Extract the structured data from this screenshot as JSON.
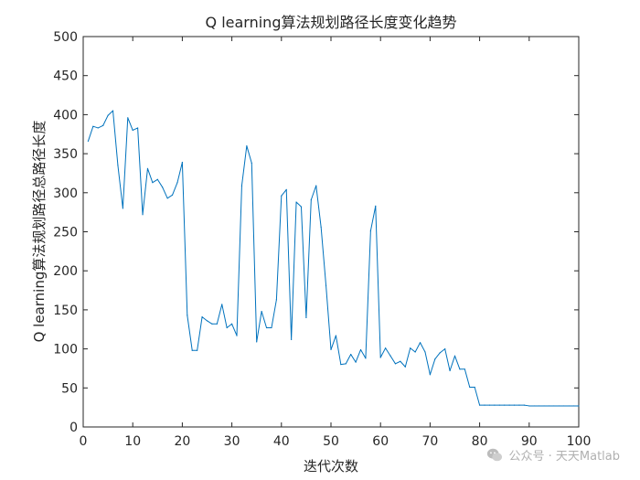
{
  "chart_data": {
    "type": "line",
    "title": "Q learning算法规划路径长度变化趋势",
    "xlabel": "迭代次数",
    "ylabel": "Q learning算法规划路径总路径长度",
    "xlim": [
      0,
      100
    ],
    "ylim": [
      0,
      500
    ],
    "xticks": [
      0,
      10,
      20,
      30,
      40,
      50,
      60,
      70,
      80,
      90,
      100
    ],
    "yticks": [
      0,
      50,
      100,
      150,
      200,
      250,
      300,
      350,
      400,
      450,
      500
    ],
    "grid": false,
    "line_color": "#0072BD",
    "series": [
      {
        "x": [
          1,
          2,
          3,
          4,
          5,
          6,
          7,
          8,
          9,
          10,
          11,
          12,
          13,
          14,
          15,
          16,
          17,
          18,
          19,
          20,
          21,
          22,
          23,
          24,
          25,
          26,
          27,
          28,
          29,
          30,
          31,
          32,
          33,
          34,
          35,
          36,
          37,
          38,
          39,
          40,
          41,
          42,
          43,
          44,
          45,
          46,
          47,
          48,
          49,
          50,
          51,
          52,
          53,
          54,
          55,
          56,
          57,
          58,
          59,
          60,
          61,
          62,
          63,
          64,
          65,
          66,
          67,
          68,
          69,
          70,
          71,
          72,
          73,
          74,
          75,
          76,
          77,
          78,
          79,
          80,
          81,
          82,
          83,
          84,
          85,
          86,
          87,
          88,
          89,
          90,
          91,
          92,
          93,
          94,
          95,
          96,
          97,
          98,
          99,
          100
        ],
        "values": [
          366,
          385,
          383,
          386,
          399,
          405,
          335,
          280,
          396,
          380,
          383,
          272,
          331,
          313,
          317,
          307,
          293,
          297,
          313,
          339,
          143,
          98,
          98,
          141,
          136,
          132,
          132,
          157,
          127,
          132,
          117,
          309,
          360,
          338,
          109,
          148,
          127,
          127,
          163,
          296,
          304,
          112,
          288,
          282,
          140,
          291,
          309,
          256,
          181,
          99,
          117,
          80,
          81,
          93,
          83,
          99,
          88,
          251,
          283,
          89,
          101,
          91,
          81,
          84,
          77,
          101,
          96,
          108,
          96,
          67,
          87,
          95,
          100,
          72,
          91,
          74,
          74,
          51,
          51,
          28,
          28,
          28,
          28,
          28,
          28,
          28,
          28,
          28,
          28,
          27,
          27,
          27,
          27,
          27,
          27,
          27,
          27,
          27,
          27,
          27
        ]
      }
    ]
  },
  "watermark": {
    "text": "公众号 · 天天Matlab",
    "icon": "wechat-icon"
  }
}
